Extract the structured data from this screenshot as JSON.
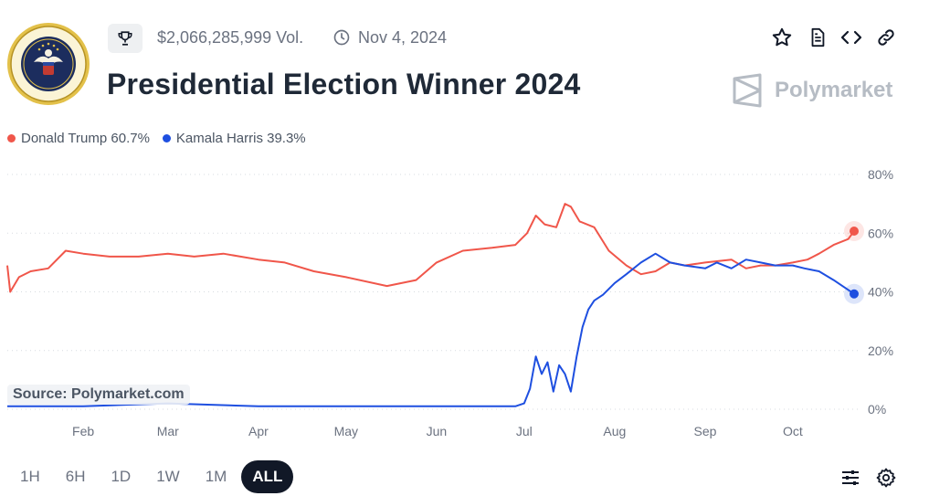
{
  "header": {
    "volume": "$2,066,285,999 Vol.",
    "date": "Nov 4, 2024",
    "title": "Presidential Election Winner 2024",
    "brand": "Polymarket"
  },
  "legend": [
    {
      "label": "Donald Trump 60.7%",
      "color": "#f0564a"
    },
    {
      "label": "Kamala Harris 39.3%",
      "color": "#1e4fe0"
    }
  ],
  "source": "Source: Polymarket.com",
  "ranges": [
    {
      "label": "1H",
      "active": false
    },
    {
      "label": "6H",
      "active": false
    },
    {
      "label": "1D",
      "active": false
    },
    {
      "label": "1W",
      "active": false
    },
    {
      "label": "1M",
      "active": false
    },
    {
      "label": "ALL",
      "active": true
    }
  ],
  "icons": {
    "trophy": "trophy-icon",
    "clock": "clock-icon",
    "star": "star-icon",
    "document": "document-icon",
    "embed": "code-icon",
    "link": "link-icon",
    "settings": "sliders-icon",
    "gear": "gear-icon"
  },
  "chart_data": {
    "type": "line",
    "x_axis_labels": [
      "Feb",
      "Mar",
      "Apr",
      "May",
      "Jun",
      "Jul",
      "Aug",
      "Sep",
      "Oct"
    ],
    "y_ticks": [
      "0%",
      "20%",
      "40%",
      "60%",
      "80%"
    ],
    "ylim": [
      0,
      80
    ],
    "grid": true,
    "x_range": [
      "2024-01-06",
      "2024-10-22"
    ],
    "series": [
      {
        "name": "Donald Trump",
        "color": "#f0564a",
        "last_value": 60.7,
        "points": [
          [
            "2024-01-06",
            49
          ],
          [
            "2024-01-07",
            40
          ],
          [
            "2024-01-10",
            45
          ],
          [
            "2024-01-14",
            47
          ],
          [
            "2024-01-20",
            48
          ],
          [
            "2024-01-26",
            54
          ],
          [
            "2024-02-01",
            53
          ],
          [
            "2024-02-10",
            52
          ],
          [
            "2024-02-20",
            52
          ],
          [
            "2024-03-01",
            53
          ],
          [
            "2024-03-10",
            52
          ],
          [
            "2024-03-20",
            53
          ],
          [
            "2024-04-01",
            51
          ],
          [
            "2024-04-10",
            50
          ],
          [
            "2024-04-20",
            47
          ],
          [
            "2024-05-01",
            45
          ],
          [
            "2024-05-15",
            42
          ],
          [
            "2024-05-25",
            44
          ],
          [
            "2024-06-01",
            50
          ],
          [
            "2024-06-10",
            54
          ],
          [
            "2024-06-20",
            55
          ],
          [
            "2024-06-28",
            56
          ],
          [
            "2024-07-02",
            60
          ],
          [
            "2024-07-05",
            66
          ],
          [
            "2024-07-08",
            63
          ],
          [
            "2024-07-12",
            62
          ],
          [
            "2024-07-15",
            70
          ],
          [
            "2024-07-17",
            69
          ],
          [
            "2024-07-20",
            64
          ],
          [
            "2024-07-25",
            62
          ],
          [
            "2024-07-30",
            54
          ],
          [
            "2024-08-05",
            49
          ],
          [
            "2024-08-10",
            46
          ],
          [
            "2024-08-15",
            47
          ],
          [
            "2024-08-20",
            50
          ],
          [
            "2024-08-25",
            49
          ],
          [
            "2024-09-01",
            50
          ],
          [
            "2024-09-10",
            51
          ],
          [
            "2024-09-15",
            48
          ],
          [
            "2024-09-20",
            49
          ],
          [
            "2024-09-25",
            49
          ],
          [
            "2024-10-01",
            50
          ],
          [
            "2024-10-06",
            51
          ],
          [
            "2024-10-10",
            53
          ],
          [
            "2024-10-15",
            56
          ],
          [
            "2024-10-20",
            58
          ],
          [
            "2024-10-22",
            60.7
          ]
        ]
      },
      {
        "name": "Kamala Harris",
        "color": "#1e4fe0",
        "last_value": 39.3,
        "points": [
          [
            "2024-01-06",
            1
          ],
          [
            "2024-02-01",
            1
          ],
          [
            "2024-03-01",
            2
          ],
          [
            "2024-04-01",
            1
          ],
          [
            "2024-05-01",
            1
          ],
          [
            "2024-06-01",
            1
          ],
          [
            "2024-06-28",
            1
          ],
          [
            "2024-07-01",
            2
          ],
          [
            "2024-07-03",
            7
          ],
          [
            "2024-07-05",
            18
          ],
          [
            "2024-07-07",
            12
          ],
          [
            "2024-07-09",
            16
          ],
          [
            "2024-07-11",
            6
          ],
          [
            "2024-07-13",
            15
          ],
          [
            "2024-07-15",
            12
          ],
          [
            "2024-07-17",
            6
          ],
          [
            "2024-07-19",
            18
          ],
          [
            "2024-07-21",
            28
          ],
          [
            "2024-07-23",
            34
          ],
          [
            "2024-07-25",
            37
          ],
          [
            "2024-07-28",
            39
          ],
          [
            "2024-08-01",
            43
          ],
          [
            "2024-08-05",
            46
          ],
          [
            "2024-08-10",
            50
          ],
          [
            "2024-08-15",
            53
          ],
          [
            "2024-08-20",
            50
          ],
          [
            "2024-08-25",
            49
          ],
          [
            "2024-09-01",
            48
          ],
          [
            "2024-09-05",
            50
          ],
          [
            "2024-09-10",
            48
          ],
          [
            "2024-09-15",
            51
          ],
          [
            "2024-09-20",
            50
          ],
          [
            "2024-09-25",
            49
          ],
          [
            "2024-10-01",
            49
          ],
          [
            "2024-10-05",
            48
          ],
          [
            "2024-10-10",
            47
          ],
          [
            "2024-10-15",
            44
          ],
          [
            "2024-10-18",
            42
          ],
          [
            "2024-10-22",
            39.3
          ]
        ]
      }
    ]
  }
}
